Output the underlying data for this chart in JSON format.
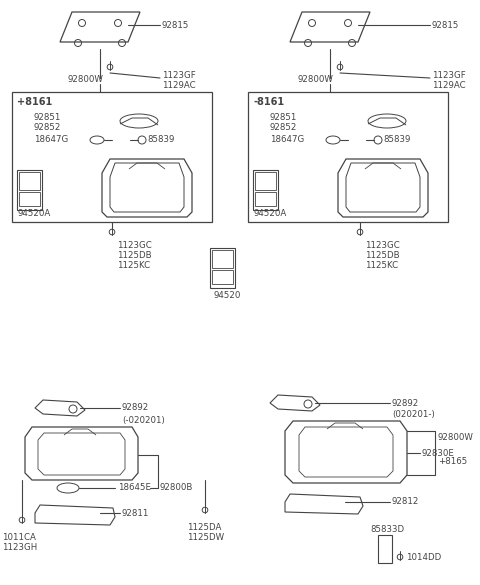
{
  "bg_color": "#ffffff",
  "line_color": "#444444",
  "figsize": [
    4.8,
    5.85
  ],
  "dpi": 100,
  "labels": {
    "top_left_plate": "92815",
    "top_left_bolt1": "1123GF",
    "top_left_bolt2": "1129AC",
    "top_right_plate": "92815",
    "top_right_bolt1": "1123GF",
    "top_right_bolt2": "1129AC",
    "left_box_label": "92800W",
    "right_box_label": "92800W",
    "left_box_tag": "+8161",
    "right_box_tag": "-8161",
    "left_box_p1": "92851",
    "left_box_p2": "92852",
    "left_box_p3": "18647G",
    "left_box_p4": "85839",
    "left_box_p5": "94520A",
    "right_box_p1": "92851",
    "right_box_p2": "92852",
    "right_box_p3": "18647G",
    "right_box_p4": "85839",
    "right_box_p5": "94520A",
    "left_bolt1": "1123GC",
    "left_bolt2": "1125DB",
    "left_bolt3": "1125KC",
    "right_bolt1": "1123GC",
    "right_bolt2": "1125DB",
    "right_bolt3": "1125KC",
    "center_part": "94520",
    "bl_p1": "92892",
    "bl_p1b": "(-020201)",
    "bl_p2": "18645E",
    "bl_p3": "92800B",
    "bl_p4": "92811",
    "bl_bolt1": "1011CA",
    "bl_bolt2": "1123GH",
    "center_bolt1": "1125DA",
    "center_bolt2": "1125DW",
    "br_p1": "92892",
    "br_p1b": "(020201-)",
    "br_p2": "92800W",
    "br_p2b": "+8165",
    "br_p3": "92830E",
    "br_p4": "92812",
    "br_p5": "85833D",
    "br_p6": "1014DD"
  }
}
